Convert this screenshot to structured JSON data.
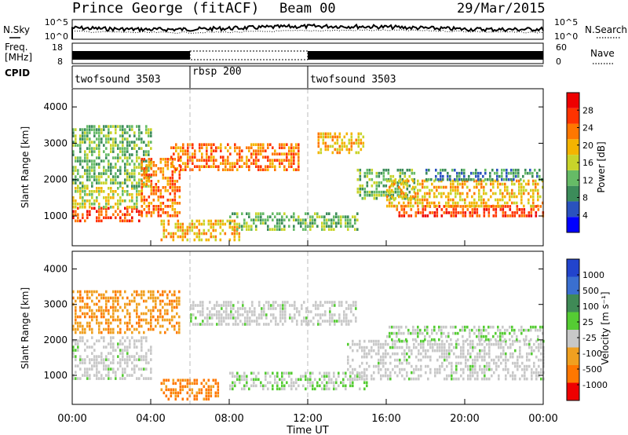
{
  "header": {
    "station": "Prince George (fitACF)",
    "beam": "Beam 00",
    "date": "29/Mar/2015"
  },
  "nsky_panel": {
    "left_label": "N.Sky",
    "right_label": "N.Search",
    "y_ticks_left": [
      "10^5",
      "10^0"
    ],
    "y_ticks_right": [
      "10^5",
      "10^0"
    ]
  },
  "freq_panel": {
    "left_label_line1": "Freq.",
    "left_label_line2": "[MHz]",
    "right_label": "Nave",
    "y_ticks_left": [
      "18",
      "8"
    ],
    "y_ticks_right": [
      "60",
      "0"
    ]
  },
  "cpid_panel": {
    "label": "CPID",
    "segments": [
      {
        "name": "twofsound 3503",
        "start": 0,
        "end": 6
      },
      {
        "name": "rbsp 200",
        "start": 6,
        "end": 12
      },
      {
        "name": "twofsound 3503",
        "start": 12,
        "end": 24
      }
    ]
  },
  "x_axis": {
    "label": "Time UT",
    "ticks": [
      "00:00",
      "04:00",
      "08:00",
      "12:00",
      "16:00",
      "20:00",
      "00:00"
    ],
    "range_hours": [
      0,
      24
    ]
  },
  "power_panel": {
    "ylabel": "Slant Range [km]",
    "yticks": [
      "1000",
      "2000",
      "3000",
      "4000"
    ],
    "colorbar_label": "Power [dB]",
    "colorbar_ticks": [
      "4",
      "8",
      "12",
      "16",
      "20",
      "24",
      "28"
    ],
    "colors": [
      "#0000ff",
      "#2a52be",
      "#3c8c5a",
      "#66bb66",
      "#c8d42a",
      "#f4b400",
      "#ff7700",
      "#ff3300",
      "#ee0000"
    ]
  },
  "velocity_panel": {
    "ylabel": "Slant Range [km]",
    "yticks": [
      "1000",
      "2000",
      "3000",
      "4000"
    ],
    "colorbar_label": "Velocity [m s⁻¹]",
    "colorbar_ticks": [
      "1000",
      "500",
      "100",
      "25",
      "-25",
      "-100",
      "-500",
      "-1000"
    ],
    "colors": [
      "#2244cc",
      "#3a6fd0",
      "#3f8a56",
      "#55cc33",
      "#c8c8c8",
      "#f0a020",
      "#ff7700",
      "#ee0000"
    ]
  },
  "chart_data": {
    "type": "heatmap",
    "x": {
      "unit": "hours UT",
      "range": [
        0,
        24
      ]
    },
    "y": {
      "unit": "km",
      "range": [
        180,
        4500
      ]
    },
    "power_regions": [
      {
        "t0": 0.0,
        "t1": 3.5,
        "r0": 900,
        "r1": 1250,
        "level": 28
      },
      {
        "t0": 0.0,
        "t1": 3.5,
        "r0": 1250,
        "r1": 1800,
        "level": 14
      },
      {
        "t0": 0.0,
        "t1": 4.0,
        "r0": 1800,
        "r1": 3500,
        "level": 10
      },
      {
        "t0": 3.5,
        "t1": 5.5,
        "r0": 1000,
        "r1": 2600,
        "level": 22
      },
      {
        "t0": 4.5,
        "t1": 8.5,
        "r0": 300,
        "r1": 900,
        "level": 20
      },
      {
        "t0": 5.0,
        "t1": 11.5,
        "r0": 2300,
        "r1": 3000,
        "level": 22
      },
      {
        "t0": 8.0,
        "t1": 14.5,
        "r0": 600,
        "r1": 1100,
        "level": 10
      },
      {
        "t0": 12.5,
        "t1": 14.8,
        "r0": 2700,
        "r1": 3300,
        "level": 20
      },
      {
        "t0": 14.5,
        "t1": 17.5,
        "r0": 1500,
        "r1": 2300,
        "level": 12
      },
      {
        "t0": 16.5,
        "t1": 24.0,
        "r0": 1000,
        "r1": 1300,
        "level": 28
      },
      {
        "t0": 16.0,
        "t1": 24.0,
        "r0": 1300,
        "r1": 2000,
        "level": 20
      },
      {
        "t0": 18.0,
        "t1": 24.0,
        "r0": 2000,
        "r1": 2300,
        "level": 8
      }
    ],
    "velocity_regions": [
      {
        "t0": 0.0,
        "t1": 4.0,
        "r0": 900,
        "r1": 2100,
        "level": 0
      },
      {
        "t0": 0.0,
        "t1": 5.5,
        "r0": 2200,
        "r1": 3400,
        "level": -100
      },
      {
        "t0": 4.5,
        "t1": 7.5,
        "r0": 300,
        "r1": 900,
        "level": -500
      },
      {
        "t0": 6.0,
        "t1": 14.5,
        "r0": 2400,
        "r1": 3100,
        "level": 0
      },
      {
        "t0": 8.0,
        "t1": 15.0,
        "r0": 600,
        "r1": 1100,
        "level": 100
      },
      {
        "t0": 14.0,
        "t1": 24.0,
        "r0": 900,
        "r1": 2000,
        "level": 0
      },
      {
        "t0": 16.0,
        "t1": 24.0,
        "r0": 2000,
        "r1": 2400,
        "level": 100
      }
    ]
  }
}
